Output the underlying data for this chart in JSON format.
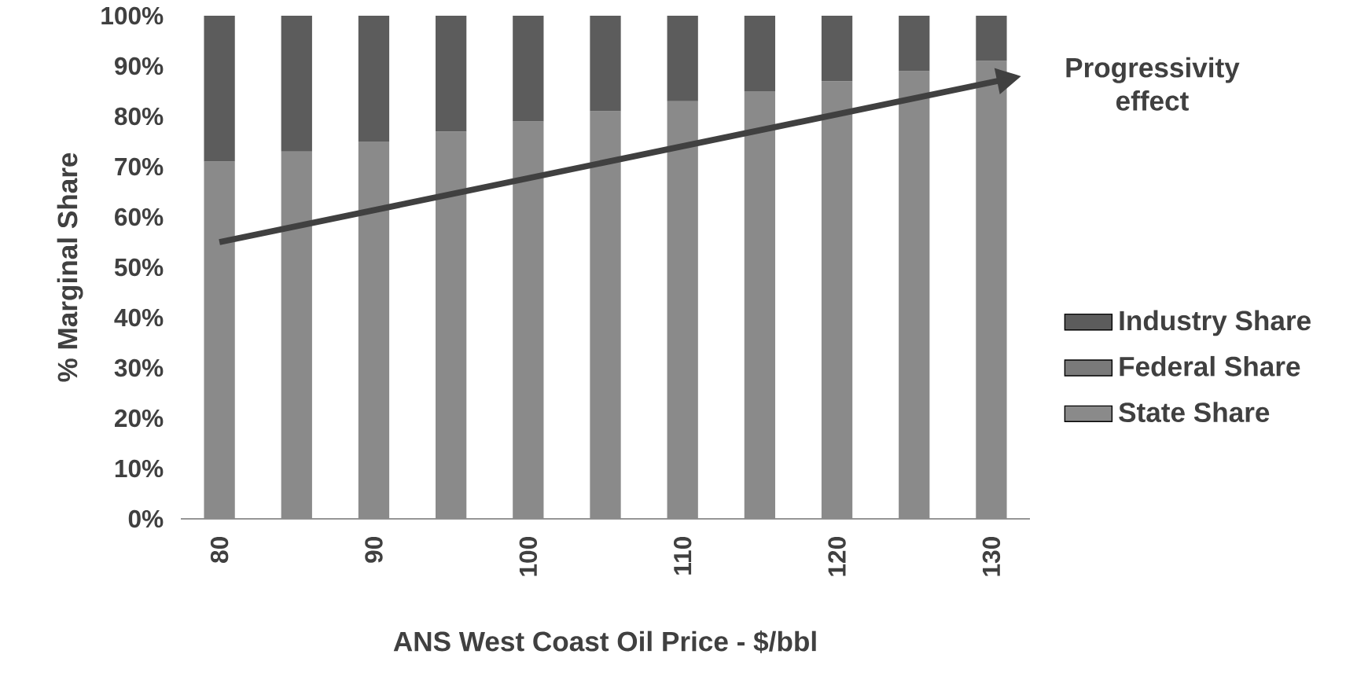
{
  "chart_data": {
    "type": "bar",
    "stacked": true,
    "xlabel": "ANS West Coast Oil Price - $/bbl",
    "ylabel": "% Marginal Share",
    "categories": [
      "80",
      null,
      "90",
      null,
      "100",
      null,
      "110",
      null,
      "120",
      null,
      "130"
    ],
    "series": [
      {
        "name": "State Share",
        "color": "#8a8a8a",
        "values": [
          71,
          73,
          75,
          77,
          79,
          81,
          83,
          85,
          87,
          89,
          91
        ]
      },
      {
        "name": "Federal Share",
        "color": "#7a7a7a",
        "values": [
          null,
          null,
          null,
          null,
          null,
          null,
          null,
          null,
          null,
          null,
          null
        ]
      },
      {
        "name": "Industry Share",
        "color": "#5c5c5c",
        "values": [
          29,
          27,
          25,
          23,
          21,
          19,
          17,
          15,
          13,
          11,
          9
        ]
      }
    ],
    "ylim": [
      0,
      100
    ],
    "yticks": [
      {
        "value": 0,
        "label": "0%"
      },
      {
        "value": 10,
        "label": "10%"
      },
      {
        "value": 20,
        "label": "20%"
      },
      {
        "value": 30,
        "label": "30%"
      },
      {
        "value": 40,
        "label": "40%"
      },
      {
        "value": 50,
        "label": "50%"
      },
      {
        "value": 60,
        "label": "60%"
      },
      {
        "value": 70,
        "label": "70%"
      },
      {
        "value": 80,
        "label": "80%"
      },
      {
        "value": 90,
        "label": "90%"
      },
      {
        "value": 100,
        "label": "100%"
      }
    ],
    "legend": "right",
    "annotations": [
      "Progressivity effect"
    ]
  }
}
